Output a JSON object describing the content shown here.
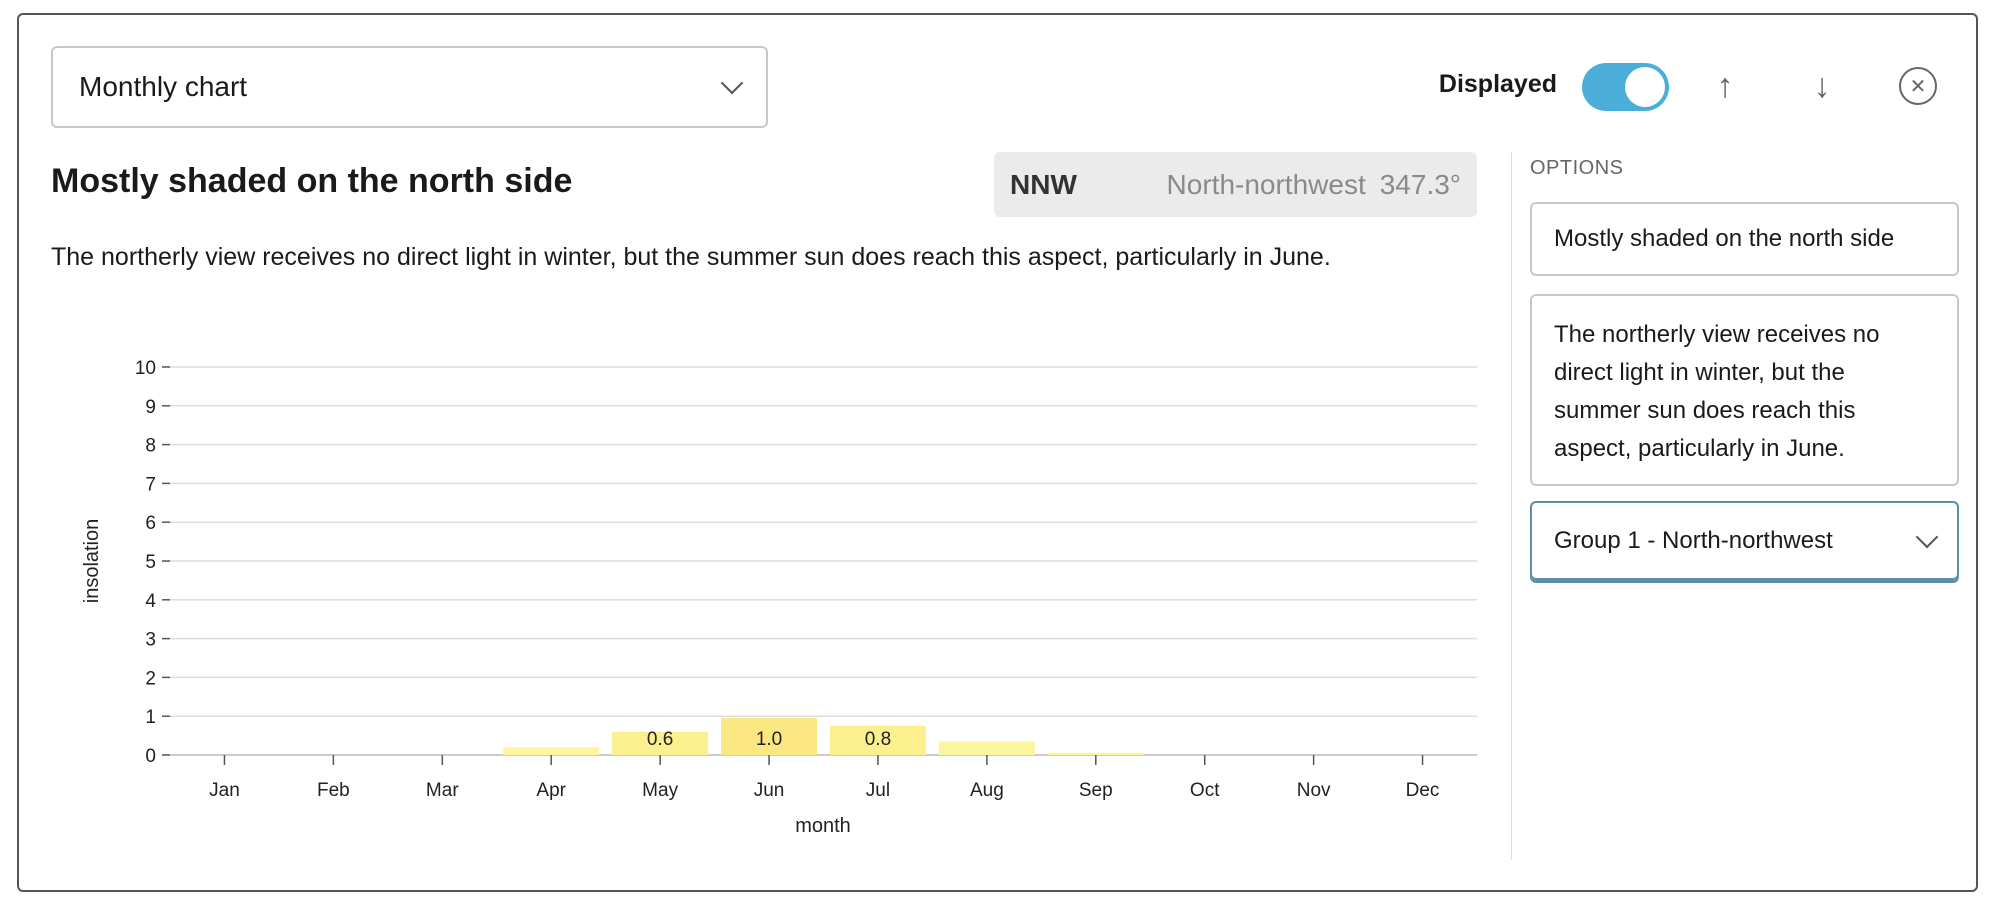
{
  "header": {
    "chart_type_select": "Monthly chart",
    "displayed_label": "Displayed",
    "displayed_on": true,
    "toggle_color": "#4aaed8"
  },
  "main": {
    "title": "Mostly shaded on the north side",
    "aspect": {
      "abbr": "NNW",
      "name": "North-northwest",
      "degrees": "347.3°"
    },
    "description": "The northerly view receives no direct light in winter, but the summer sun does reach this aspect, particularly in June."
  },
  "options": {
    "label": "OPTIONS",
    "title_value": "Mostly shaded on the north side",
    "description_value": "The northerly view receives no direct light in winter, but the summer sun does reach this aspect, particularly in June.",
    "group_select": "Group 1 - North-northwest"
  },
  "chart_data": {
    "type": "bar",
    "xlabel": "month",
    "ylabel": "insolation",
    "ylim": [
      0,
      10
    ],
    "yticks": [
      "0",
      "1",
      "2",
      "3",
      "4",
      "5",
      "6",
      "7",
      "8",
      "9",
      "10"
    ],
    "categories": [
      "Jan",
      "Feb",
      "Mar",
      "Apr",
      "May",
      "Jun",
      "Jul",
      "Aug",
      "Sep",
      "Oct",
      "Nov",
      "Dec"
    ],
    "values": [
      0,
      0,
      0,
      0.2,
      0.6,
      0.95,
      0.75,
      0.35,
      0.06,
      0,
      0,
      0
    ],
    "data_labels": [
      "",
      "",
      "",
      "",
      "0.6",
      "1.0",
      "0.8",
      "",
      "",
      "",
      "",
      ""
    ],
    "grid": true,
    "bar_color_low": "#fdf6a0",
    "bar_color_high": "#fbe782"
  }
}
